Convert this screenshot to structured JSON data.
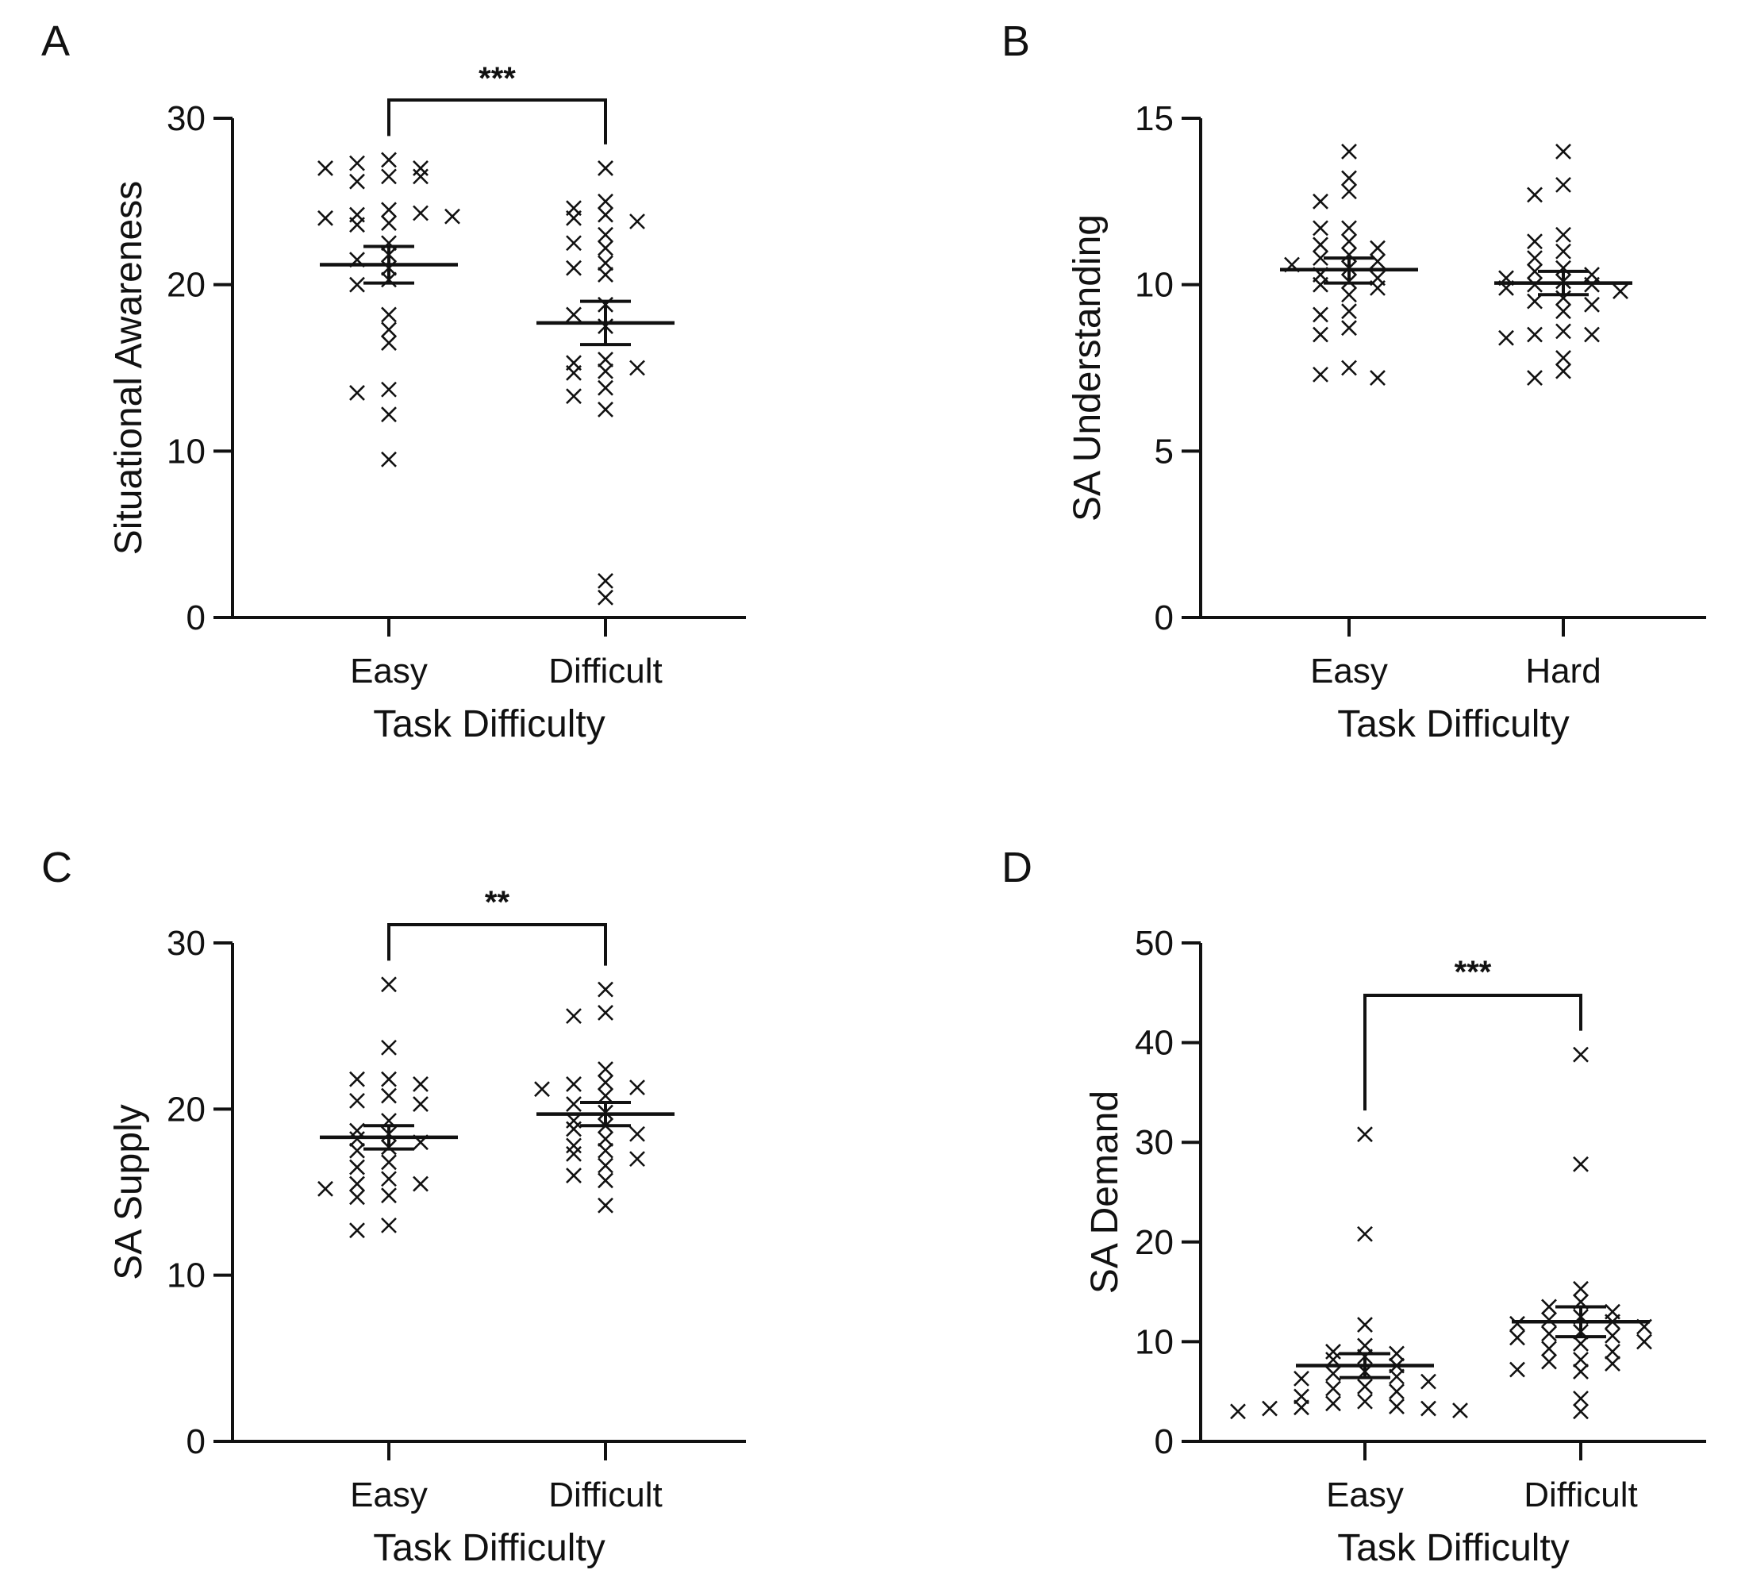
{
  "chart_data": [
    {
      "panel": "A",
      "type": "scatter",
      "xlabel": "Task Difficulty",
      "ylabel": "Situational Awareness",
      "ylim": [
        0,
        30
      ],
      "yticks": [
        0,
        10,
        20,
        30
      ],
      "categories": [
        "Easy",
        "Difficult"
      ],
      "significance": "***",
      "series": [
        {
          "values": [
            27.5,
            27.3,
            27.0,
            26.5,
            26.2,
            26.5,
            27.0,
            24.5,
            24.2,
            24.3,
            24.0,
            24.1,
            23.7,
            23.6,
            22.5,
            21.8,
            21.5,
            21.0,
            20.3,
            20.0,
            18.2,
            17.3,
            16.5,
            13.7,
            13.5,
            12.2,
            9.5
          ],
          "mean": 21.2,
          "sem_low": 20.1,
          "sem_high": 22.3
        },
        {
          "values": [
            27.0,
            25.0,
            24.6,
            24.2,
            24.0,
            23.8,
            23.0,
            22.5,
            22.2,
            21.3,
            21.0,
            20.6,
            18.8,
            18.2,
            17.5,
            15.5,
            15.3,
            15.0,
            14.8,
            14.7,
            13.8,
            13.3,
            12.5,
            2.2,
            1.2
          ],
          "mean": 17.7,
          "sem_low": 16.4,
          "sem_high": 19.0
        }
      ]
    },
    {
      "panel": "B",
      "type": "scatter",
      "xlabel": "Task Difficulty",
      "ylabel": "SA Understanding",
      "ylim": [
        0,
        15
      ],
      "yticks": [
        0,
        5,
        10,
        15
      ],
      "categories": [
        "Easy",
        "Hard"
      ],
      "significance": "",
      "series": [
        {
          "values": [
            14.0,
            13.2,
            12.8,
            12.5,
            11.7,
            11.7,
            11.3,
            11.2,
            11.1,
            10.9,
            10.8,
            10.7,
            10.6,
            10.5,
            10.3,
            10.2,
            10.1,
            10.0,
            9.9,
            9.7,
            9.2,
            9.1,
            8.7,
            8.5,
            7.5,
            7.3,
            7.2
          ],
          "mean": 10.45,
          "sem_low": 10.05,
          "sem_high": 10.8
        },
        {
          "values": [
            14.0,
            13.0,
            12.7,
            11.5,
            11.3,
            11.0,
            10.8,
            10.5,
            10.4,
            10.3,
            10.2,
            10.1,
            10.0,
            10.0,
            9.9,
            9.8,
            9.6,
            9.5,
            9.4,
            9.2,
            8.6,
            8.5,
            8.5,
            8.4,
            7.8,
            7.4,
            7.2
          ],
          "mean": 10.05,
          "sem_low": 9.7,
          "sem_high": 10.4
        }
      ]
    },
    {
      "panel": "C",
      "type": "scatter",
      "xlabel": "Task Difficulty",
      "ylabel": "SA Supply",
      "ylim": [
        0,
        30
      ],
      "yticks": [
        0,
        10,
        20,
        30
      ],
      "categories": [
        "Easy",
        "Difficult"
      ],
      "significance": "**",
      "series": [
        {
          "values": [
            27.5,
            23.7,
            21.8,
            21.8,
            21.5,
            20.8,
            20.5,
            20.3,
            19.3,
            18.7,
            18.5,
            18.2,
            18.0,
            17.7,
            17.5,
            16.8,
            16.5,
            15.8,
            15.5,
            15.5,
            15.2,
            14.8,
            14.7,
            13.0,
            12.7
          ],
          "mean": 18.3,
          "sem_low": 17.6,
          "sem_high": 19.0
        },
        {
          "values": [
            27.2,
            25.8,
            25.6,
            22.4,
            21.6,
            21.5,
            21.3,
            21.2,
            20.8,
            20.3,
            19.8,
            19.3,
            19.0,
            18.8,
            18.5,
            18.2,
            17.8,
            17.5,
            17.3,
            17.0,
            16.6,
            16.0,
            15.7,
            14.2
          ],
          "mean": 19.7,
          "sem_low": 19.0,
          "sem_high": 20.4
        }
      ]
    },
    {
      "panel": "D",
      "type": "scatter",
      "xlabel": "Task Difficulty",
      "ylabel": "SA Demand",
      "ylim": [
        0,
        50
      ],
      "yticks": [
        0,
        10,
        20,
        30,
        40,
        50
      ],
      "categories": [
        "Easy",
        "Difficult"
      ],
      "significance": "***",
      "series": [
        {
          "values": [
            30.8,
            20.8,
            11.7,
            9.6,
            9.0,
            8.8,
            8.5,
            8.2,
            7.6,
            7.0,
            6.8,
            6.5,
            6.3,
            6.0,
            5.5,
            5.3,
            5.0,
            4.5,
            4.0,
            3.8,
            3.5,
            3.4,
            3.3,
            3.3,
            3.1,
            3.0
          ],
          "mean": 7.6,
          "sem_low": 6.4,
          "sem_high": 8.8
        },
        {
          "values": [
            38.8,
            27.8,
            15.3,
            14.0,
            13.5,
            13.0,
            12.5,
            12.2,
            12.0,
            11.8,
            11.5,
            11.0,
            10.8,
            10.6,
            10.4,
            10.0,
            9.8,
            9.3,
            9.0,
            8.2,
            8.0,
            7.8,
            7.2,
            7.0,
            4.3,
            3.0
          ],
          "mean": 12.0,
          "sem_low": 10.5,
          "sem_high": 13.5
        }
      ]
    }
  ]
}
